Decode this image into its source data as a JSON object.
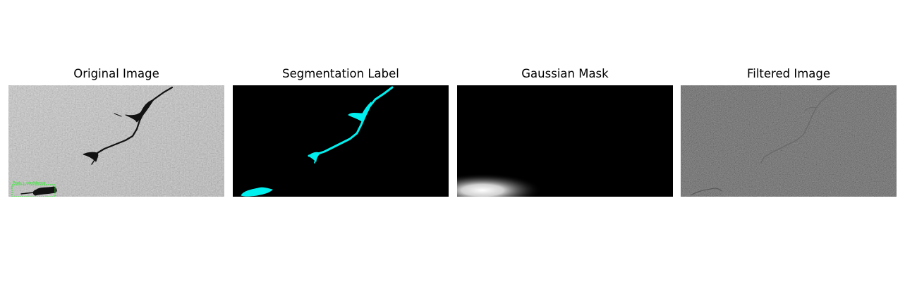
{
  "figure": {
    "panels": [
      {
        "title": "Original Image",
        "image": "grayscale sar texture with dark crack"
      },
      {
        "title": "Segmentation Label",
        "image": "cyan segmentation mask on black"
      },
      {
        "title": "Gaussian Mask",
        "image": "white gaussian blob bottom-left on black"
      },
      {
        "title": "Filtered Image",
        "image": "dark filtered texture with faint crack"
      }
    ],
    "annotation": {
      "box_label": "Peak + confidence",
      "box_color": "#22ee22"
    },
    "colors": {
      "segmentation": "#00f0f0",
      "background": "#000000"
    }
  }
}
